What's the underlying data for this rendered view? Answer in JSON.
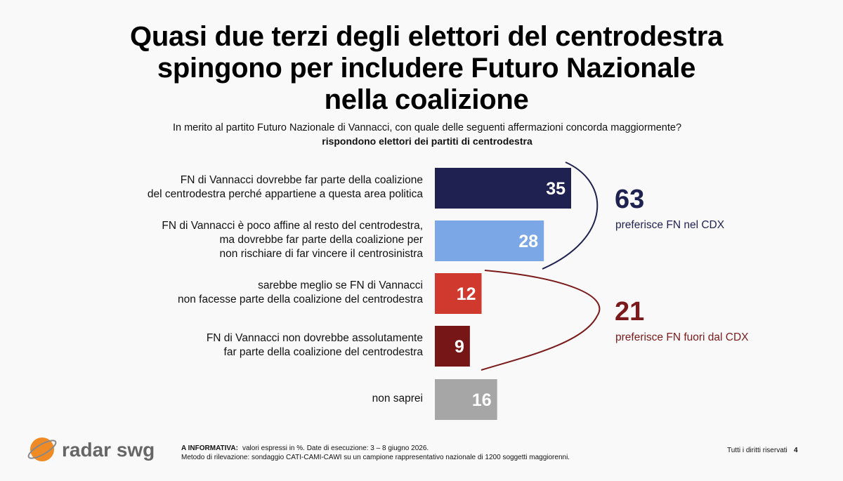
{
  "chart_data": {
    "type": "bar",
    "orientation": "horizontal",
    "title": "Quasi due terzi degli elettori del centrodestra\nspingono per includere Futuro Nazionale\nnella coalizione",
    "subtitle": "In merito al partito Futuro Nazionale di Vannacci, con quale delle seguenti affermazioni concorda maggiormente?",
    "subtitle2": "rispondono elettori dei partiti di centrodestra",
    "categories": [
      "FN di Vannacci dovrebbe far parte della coalizione\ndel centrodestra perché appartiene a questa area politica",
      "FN di Vannacci è poco affine al resto del centrodestra,\nma dovrebbe far parte della coalizione per\nnon rischiare di far vincere il centrosinistra",
      "sarebbe meglio se FN di Vannacci\nnon facesse parte della coalizione del centrodestra",
      "FN di Vannacci non dovrebbe assolutamente\nfar parte della coalizione del centrodestra",
      "non saprei"
    ],
    "values": [
      35,
      28,
      12,
      9,
      16
    ],
    "colors": [
      "#1f2150",
      "#7ba7e6",
      "#d0392d",
      "#761616",
      "#a6a6a6"
    ],
    "annotations": [
      {
        "value": 63,
        "text": "preferisce FN nel CDX",
        "color": "#1f2150"
      },
      {
        "value": 21,
        "text": "preferisce FN fuori dal CDX",
        "color": "#7a1a1a"
      }
    ],
    "footer": {
      "logo": "radar swg",
      "note_label": "A INFORMATIVA:",
      "note": "valori espressi in %. Date di esecuzione: 3 – 8 giugno 2026.",
      "method": "Metodo di rilevazione: sondaggio CATI-CAMI-CAWI su un campione rappresentativo nazionale di 1200 soggetti maggiorenni.",
      "rights": "Tutti i diritti riservati",
      "page": "4"
    }
  }
}
